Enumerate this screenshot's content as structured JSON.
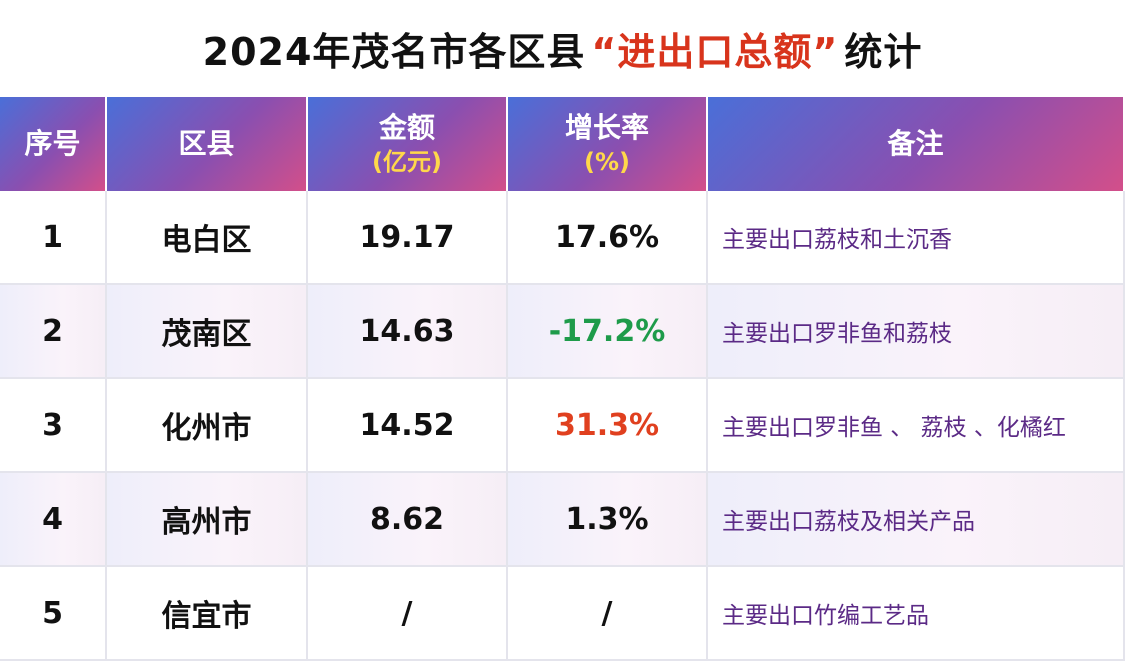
{
  "title": {
    "prefix": "2024年茂名市各区县",
    "highlight": "“进出口总额”",
    "suffix": "统计"
  },
  "table": {
    "headers": [
      {
        "text": "序号"
      },
      {
        "text": "区县"
      },
      {
        "text": "金额",
        "unit": "(亿元)"
      },
      {
        "text": "增长率",
        "unit": "(%)"
      },
      {
        "text": "备注"
      }
    ],
    "rows": [
      [
        "1",
        "电白区",
        "19.17",
        "17.6%",
        "主要出口荔枝和土沉香"
      ],
      [
        "2",
        "茂南区",
        "14.63",
        "-17.2%",
        "主要出口罗非鱼和荔枝"
      ],
      [
        "3",
        "化州市",
        "14.52",
        "31.3%",
        "主要出口罗非鱼 、 荔枝 、化橘红"
      ],
      [
        "4",
        "高州市",
        "8.62",
        "1.3%",
        "主要出口荔枝及相关产品"
      ],
      [
        "5",
        "信宜市",
        "/",
        "/",
        "主要出口竹编工艺品"
      ]
    ]
  }
}
